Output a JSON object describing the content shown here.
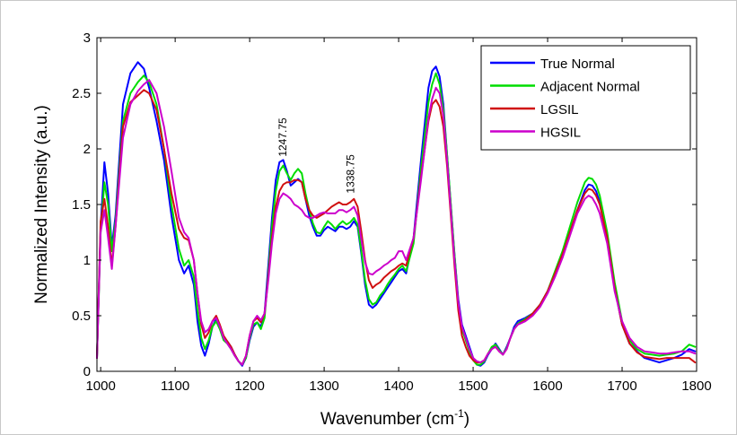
{
  "chart_data": {
    "type": "line",
    "xlabel": "Wavenumber (cm",
    "xlabel_sup": "-1",
    "xlabel_tail": ")",
    "ylabel": "Normalized Intensity (a.u.)",
    "xlim": [
      995,
      1800
    ],
    "ylim": [
      0,
      3
    ],
    "x_ticks": [
      1000,
      1100,
      1200,
      1300,
      1400,
      1500,
      1600,
      1700,
      1800
    ],
    "y_ticks": [
      0,
      0.5,
      1,
      1.5,
      2,
      2.5,
      3
    ],
    "y_tick_labels": [
      "0",
      "0.5",
      "1",
      "1.5",
      "2",
      "2.5",
      "3"
    ],
    "grid": false,
    "legend_placement": "top-right",
    "annotations": [
      {
        "text": "1247.75",
        "x": 1249,
        "y": 1.93
      },
      {
        "text": "1338.75",
        "x": 1340,
        "y": 1.6
      }
    ],
    "x": [
      995,
      1000,
      1005,
      1010,
      1015,
      1020,
      1030,
      1040,
      1050,
      1058,
      1065,
      1075,
      1085,
      1095,
      1105,
      1112,
      1118,
      1125,
      1130,
      1135,
      1140,
      1145,
      1150,
      1155,
      1160,
      1165,
      1170,
      1175,
      1180,
      1185,
      1190,
      1195,
      1200,
      1205,
      1210,
      1215,
      1220,
      1225,
      1230,
      1235,
      1240,
      1245,
      1250,
      1255,
      1260,
      1265,
      1270,
      1275,
      1280,
      1285,
      1290,
      1295,
      1300,
      1305,
      1310,
      1315,
      1320,
      1325,
      1330,
      1335,
      1340,
      1345,
      1350,
      1355,
      1360,
      1365,
      1370,
      1375,
      1380,
      1385,
      1390,
      1395,
      1400,
      1405,
      1410,
      1420,
      1430,
      1440,
      1445,
      1450,
      1455,
      1460,
      1465,
      1470,
      1475,
      1480,
      1485,
      1490,
      1495,
      1500,
      1505,
      1510,
      1515,
      1520,
      1525,
      1530,
      1535,
      1540,
      1545,
      1550,
      1555,
      1560,
      1570,
      1580,
      1590,
      1600,
      1610,
      1620,
      1630,
      1640,
      1650,
      1655,
      1660,
      1665,
      1670,
      1680,
      1690,
      1700,
      1710,
      1720,
      1730,
      1740,
      1750,
      1760,
      1770,
      1780,
      1790,
      1798
    ],
    "series": [
      {
        "name": "True Normal",
        "color": "#0000ff",
        "values": [
          0.12,
          1.3,
          1.88,
          1.6,
          1.12,
          1.4,
          2.4,
          2.68,
          2.78,
          2.72,
          2.55,
          2.25,
          1.9,
          1.4,
          1.0,
          0.88,
          0.95,
          0.78,
          0.45,
          0.23,
          0.14,
          0.25,
          0.4,
          0.47,
          0.4,
          0.3,
          0.27,
          0.22,
          0.15,
          0.09,
          0.05,
          0.12,
          0.28,
          0.4,
          0.44,
          0.4,
          0.52,
          0.95,
          1.38,
          1.72,
          1.88,
          1.9,
          1.8,
          1.67,
          1.7,
          1.73,
          1.7,
          1.55,
          1.4,
          1.3,
          1.22,
          1.22,
          1.27,
          1.3,
          1.28,
          1.26,
          1.3,
          1.3,
          1.28,
          1.3,
          1.35,
          1.3,
          1.05,
          0.78,
          0.6,
          0.57,
          0.6,
          0.65,
          0.7,
          0.75,
          0.8,
          0.85,
          0.9,
          0.92,
          0.88,
          1.2,
          1.9,
          2.55,
          2.7,
          2.74,
          2.65,
          2.4,
          1.95,
          1.5,
          1.05,
          0.65,
          0.42,
          0.32,
          0.22,
          0.12,
          0.06,
          0.05,
          0.08,
          0.15,
          0.2,
          0.25,
          0.2,
          0.15,
          0.22,
          0.3,
          0.4,
          0.45,
          0.48,
          0.52,
          0.6,
          0.72,
          0.88,
          1.05,
          1.25,
          1.45,
          1.63,
          1.68,
          1.67,
          1.62,
          1.52,
          1.2,
          0.75,
          0.42,
          0.25,
          0.18,
          0.12,
          0.1,
          0.08,
          0.1,
          0.12,
          0.15,
          0.2,
          0.18
        ]
      },
      {
        "name": "Adjacent Normal",
        "color": "#00dd00",
        "values": [
          0.12,
          1.25,
          1.7,
          1.5,
          1.08,
          1.35,
          2.25,
          2.5,
          2.6,
          2.66,
          2.6,
          2.4,
          2.0,
          1.5,
          1.1,
          0.95,
          1.0,
          0.85,
          0.55,
          0.3,
          0.2,
          0.28,
          0.4,
          0.45,
          0.38,
          0.28,
          0.25,
          0.2,
          0.14,
          0.09,
          0.06,
          0.12,
          0.3,
          0.42,
          0.44,
          0.38,
          0.48,
          0.88,
          1.3,
          1.62,
          1.8,
          1.85,
          1.78,
          1.72,
          1.78,
          1.82,
          1.78,
          1.6,
          1.45,
          1.33,
          1.25,
          1.24,
          1.3,
          1.35,
          1.32,
          1.28,
          1.32,
          1.35,
          1.32,
          1.34,
          1.38,
          1.32,
          1.08,
          0.82,
          0.65,
          0.6,
          0.62,
          0.68,
          0.72,
          0.78,
          0.83,
          0.87,
          0.92,
          0.95,
          0.9,
          1.15,
          1.82,
          2.42,
          2.58,
          2.68,
          2.58,
          2.35,
          1.95,
          1.5,
          1.05,
          0.62,
          0.38,
          0.28,
          0.18,
          0.1,
          0.06,
          0.06,
          0.09,
          0.16,
          0.22,
          0.24,
          0.19,
          0.15,
          0.21,
          0.3,
          0.38,
          0.43,
          0.47,
          0.52,
          0.6,
          0.72,
          0.9,
          1.08,
          1.3,
          1.52,
          1.7,
          1.74,
          1.73,
          1.68,
          1.58,
          1.25,
          0.8,
          0.45,
          0.28,
          0.2,
          0.16,
          0.15,
          0.14,
          0.15,
          0.16,
          0.18,
          0.24,
          0.22
        ]
      },
      {
        "name": "LGSIL",
        "color": "#d01010",
        "values": [
          0.12,
          1.35,
          1.55,
          1.3,
          0.95,
          1.3,
          2.2,
          2.42,
          2.48,
          2.53,
          2.5,
          2.35,
          2.0,
          1.6,
          1.28,
          1.2,
          1.18,
          1.0,
          0.7,
          0.42,
          0.3,
          0.35,
          0.45,
          0.5,
          0.42,
          0.32,
          0.27,
          0.22,
          0.15,
          0.09,
          0.06,
          0.14,
          0.32,
          0.45,
          0.48,
          0.44,
          0.52,
          0.85,
          1.2,
          1.48,
          1.62,
          1.68,
          1.7,
          1.7,
          1.72,
          1.72,
          1.7,
          1.55,
          1.45,
          1.4,
          1.38,
          1.4,
          1.42,
          1.45,
          1.48,
          1.5,
          1.52,
          1.5,
          1.5,
          1.52,
          1.55,
          1.48,
          1.25,
          1.0,
          0.82,
          0.75,
          0.78,
          0.8,
          0.84,
          0.87,
          0.9,
          0.92,
          0.95,
          0.97,
          0.95,
          1.2,
          1.75,
          2.25,
          2.4,
          2.44,
          2.38,
          2.2,
          1.85,
          1.4,
          0.95,
          0.55,
          0.32,
          0.22,
          0.14,
          0.1,
          0.08,
          0.08,
          0.1,
          0.16,
          0.2,
          0.22,
          0.18,
          0.15,
          0.2,
          0.3,
          0.38,
          0.42,
          0.46,
          0.52,
          0.6,
          0.72,
          0.88,
          1.05,
          1.25,
          1.45,
          1.6,
          1.64,
          1.63,
          1.58,
          1.5,
          1.2,
          0.75,
          0.42,
          0.25,
          0.17,
          0.13,
          0.12,
          0.11,
          0.12,
          0.12,
          0.12,
          0.12,
          0.08
        ]
      },
      {
        "name": "HGSIL",
        "color": "#cc00cc",
        "values": [
          0.12,
          1.25,
          1.45,
          1.2,
          0.92,
          1.3,
          2.1,
          2.4,
          2.52,
          2.58,
          2.62,
          2.5,
          2.2,
          1.8,
          1.38,
          1.25,
          1.2,
          1.0,
          0.7,
          0.45,
          0.35,
          0.38,
          0.45,
          0.48,
          0.4,
          0.3,
          0.25,
          0.2,
          0.14,
          0.09,
          0.06,
          0.14,
          0.32,
          0.45,
          0.5,
          0.46,
          0.52,
          0.82,
          1.15,
          1.42,
          1.55,
          1.6,
          1.58,
          1.55,
          1.5,
          1.48,
          1.45,
          1.4,
          1.38,
          1.38,
          1.4,
          1.42,
          1.43,
          1.42,
          1.42,
          1.42,
          1.45,
          1.45,
          1.43,
          1.45,
          1.48,
          1.4,
          1.18,
          0.98,
          0.88,
          0.87,
          0.9,
          0.92,
          0.95,
          0.97,
          1.0,
          1.02,
          1.08,
          1.08,
          1.0,
          1.2,
          1.72,
          2.28,
          2.45,
          2.55,
          2.5,
          2.3,
          1.9,
          1.45,
          1.0,
          0.62,
          0.4,
          0.3,
          0.2,
          0.12,
          0.09,
          0.08,
          0.1,
          0.16,
          0.2,
          0.22,
          0.18,
          0.15,
          0.2,
          0.3,
          0.38,
          0.42,
          0.45,
          0.5,
          0.58,
          0.7,
          0.85,
          1.02,
          1.22,
          1.42,
          1.55,
          1.58,
          1.56,
          1.5,
          1.42,
          1.15,
          0.72,
          0.45,
          0.3,
          0.22,
          0.18,
          0.17,
          0.16,
          0.16,
          0.17,
          0.18,
          0.18,
          0.16
        ]
      }
    ]
  }
}
